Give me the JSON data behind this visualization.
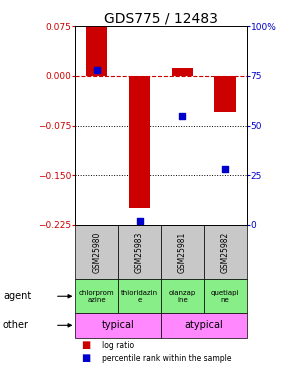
{
  "title": "GDS775 / 12483",
  "samples": [
    "GSM25980",
    "GSM25983",
    "GSM25981",
    "GSM25982"
  ],
  "log_ratios": [
    0.075,
    -0.2,
    0.012,
    -0.055
  ],
  "percentile_ranks": [
    0.78,
    0.02,
    0.55,
    0.28
  ],
  "ylim_left": [
    -0.225,
    0.075
  ],
  "ylim_right": [
    0,
    100
  ],
  "yticks_left": [
    0.075,
    0,
    -0.075,
    -0.15,
    -0.225
  ],
  "yticks_right": [
    100,
    75,
    50,
    25,
    0
  ],
  "agents": [
    "chlorprom\nazine",
    "thioridazin\ne",
    "olanzap\nine",
    "quetiapi\nne"
  ],
  "other_groups": [
    [
      "typical",
      2
    ],
    [
      "atypical",
      2
    ]
  ],
  "other_color": "#FF88FF",
  "agent_color": "#88EE88",
  "sample_color": "#C8C8C8",
  "bar_color": "#CC0000",
  "dot_color": "#0000CC",
  "zero_line_color": "#CC0000",
  "grid_line_color": "#000000",
  "left_axis_color": "#CC0000",
  "right_axis_color": "#0000CC",
  "title_fontsize": 10,
  "tick_fontsize": 6.5,
  "label_fontsize": 7
}
